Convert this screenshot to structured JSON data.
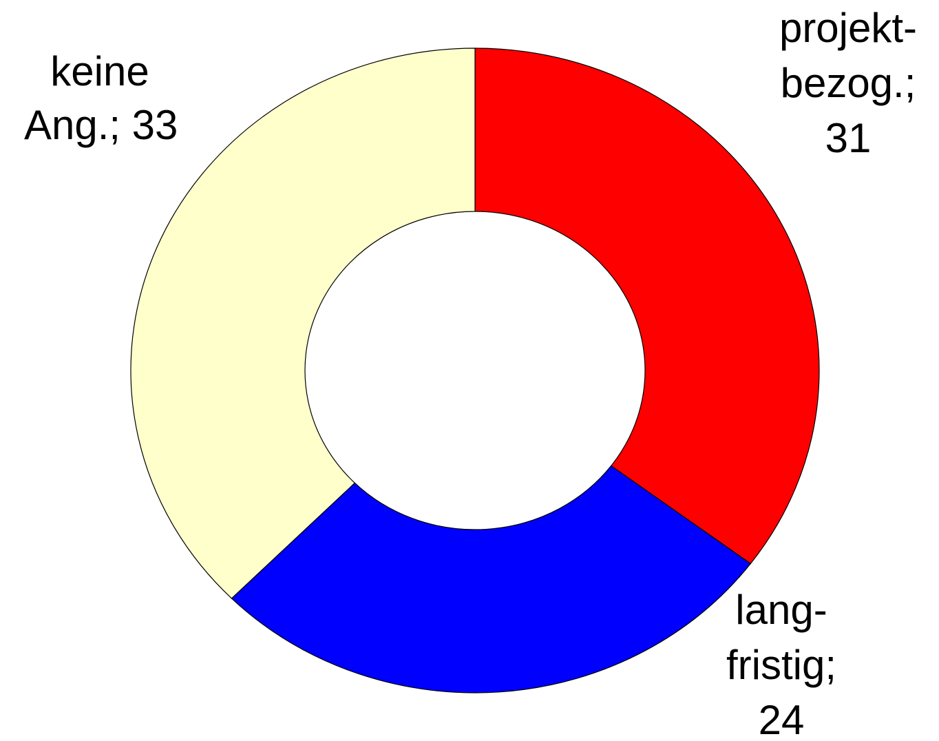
{
  "chart_data": {
    "type": "donut",
    "categories": [
      "projekt-bezog.;",
      "lang-fristig;",
      "keine Ang.;"
    ],
    "values": [
      31,
      24,
      33
    ],
    "colors": [
      "#ff0000",
      "#0000ff",
      "#ffffcc"
    ]
  }
}
